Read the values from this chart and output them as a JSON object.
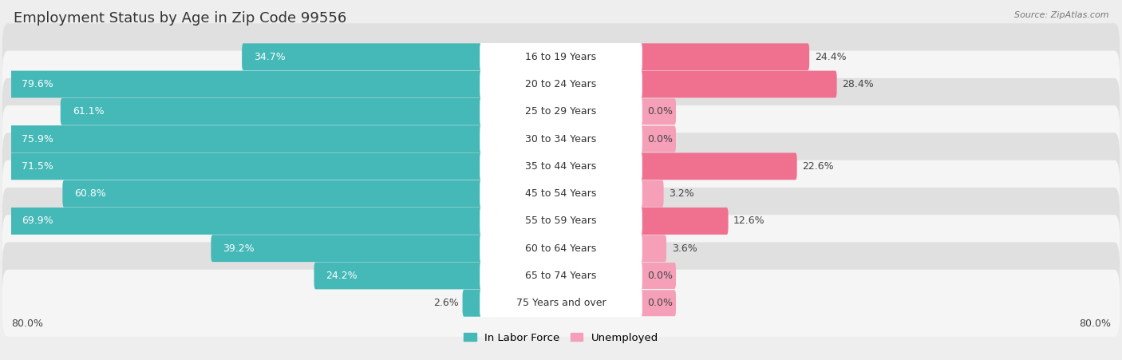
{
  "title": "Employment Status by Age in Zip Code 99556",
  "source": "Source: ZipAtlas.com",
  "categories": [
    "16 to 19 Years",
    "20 to 24 Years",
    "25 to 29 Years",
    "30 to 34 Years",
    "35 to 44 Years",
    "45 to 54 Years",
    "55 to 59 Years",
    "60 to 64 Years",
    "65 to 74 Years",
    "75 Years and over"
  ],
  "labor_force": [
    34.7,
    79.6,
    61.1,
    75.9,
    71.5,
    60.8,
    69.9,
    39.2,
    24.2,
    2.6
  ],
  "unemployed": [
    24.4,
    28.4,
    0.0,
    0.0,
    22.6,
    3.2,
    12.6,
    3.6,
    0.0,
    0.0
  ],
  "labor_color": "#45B8B8",
  "unemployed_color": "#F07090",
  "unemployed_color_light": "#F5A0B8",
  "axis_max": 80.0,
  "bg_color": "#eeeeee",
  "row_colors": [
    "#e0e0e0",
    "#f5f5f5"
  ],
  "title_fontsize": 13,
  "label_fontsize": 9,
  "legend_fontsize": 9.5,
  "axis_label_fontsize": 9
}
